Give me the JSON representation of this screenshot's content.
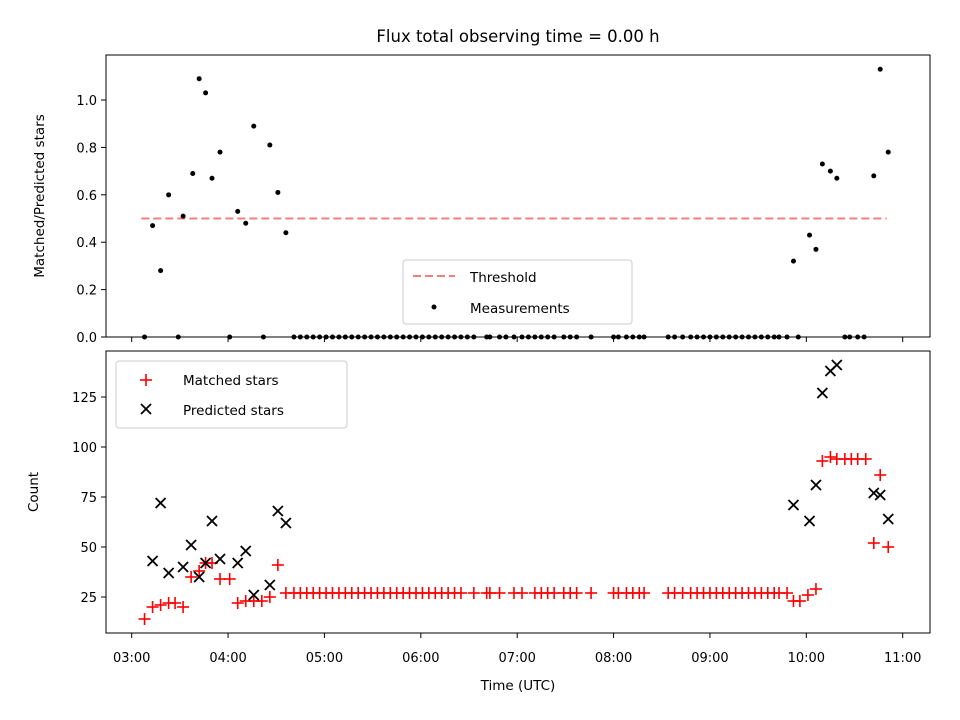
{
  "chart_data": [
    {
      "type": "scatter",
      "title": "Flux total observing time = 0.00 h",
      "xlabel": "",
      "ylabel": "Matched/Predicted stars",
      "xlim": [
        "02:44",
        "11:17"
      ],
      "ylim": [
        0,
        1.19
      ],
      "xticks": [
        "03:00",
        "04:00",
        "05:00",
        "06:00",
        "07:00",
        "08:00",
        "09:00",
        "10:00",
        "11:00"
      ],
      "yticks": [
        "0.0",
        "0.2",
        "0.4",
        "0.6",
        "0.8",
        "1.0"
      ],
      "grid": false,
      "legend_position": "lower-center",
      "threshold": {
        "name": "Threshold",
        "value": 0.5,
        "x_range": [
          "03:06",
          "10:50"
        ],
        "color": "#f08080",
        "style": "dashed"
      },
      "series": [
        {
          "name": "Measurements",
          "marker": "dot",
          "color": "#000000",
          "points": [
            [
              "03:08",
              0.0
            ],
            [
              "03:13",
              0.47
            ],
            [
              "03:18",
              0.28
            ],
            [
              "03:23",
              0.6
            ],
            [
              "03:29",
              0.0
            ],
            [
              "03:32",
              0.51
            ],
            [
              "03:38",
              0.69
            ],
            [
              "03:42",
              1.09
            ],
            [
              "03:46",
              1.03
            ],
            [
              "03:50",
              0.67
            ],
            [
              "03:55",
              0.78
            ],
            [
              "04:01",
              0.0
            ],
            [
              "04:06",
              0.53
            ],
            [
              "04:11",
              0.48
            ],
            [
              "04:16",
              0.89
            ],
            [
              "04:22",
              0.0
            ],
            [
              "04:26",
              0.81
            ],
            [
              "04:31",
              0.61
            ],
            [
              "04:36",
              0.44
            ],
            [
              "04:41",
              0.0
            ],
            [
              "04:45",
              0.0
            ],
            [
              "04:49",
              0.0
            ],
            [
              "04:53",
              0.0
            ],
            [
              "04:57",
              0.0
            ],
            [
              "05:01",
              0.0
            ],
            [
              "05:05",
              0.0
            ],
            [
              "05:09",
              0.0
            ],
            [
              "05:13",
              0.0
            ],
            [
              "05:17",
              0.0
            ],
            [
              "05:21",
              0.0
            ],
            [
              "05:25",
              0.0
            ],
            [
              "05:29",
              0.0
            ],
            [
              "05:33",
              0.0
            ],
            [
              "05:37",
              0.0
            ],
            [
              "05:41",
              0.0
            ],
            [
              "05:45",
              0.0
            ],
            [
              "05:49",
              0.0
            ],
            [
              "05:53",
              0.0
            ],
            [
              "05:57",
              0.0
            ],
            [
              "06:01",
              0.0
            ],
            [
              "06:05",
              0.0
            ],
            [
              "06:09",
              0.0
            ],
            [
              "06:13",
              0.0
            ],
            [
              "06:17",
              0.0
            ],
            [
              "06:21",
              0.0
            ],
            [
              "06:25",
              0.0
            ],
            [
              "06:29",
              0.0
            ],
            [
              "06:33",
              0.0
            ],
            [
              "06:41",
              0.0
            ],
            [
              "06:43",
              0.0
            ],
            [
              "06:49",
              0.0
            ],
            [
              "06:53",
              0.0
            ],
            [
              "06:58",
              0.0
            ],
            [
              "07:03",
              0.0
            ],
            [
              "07:07",
              0.0
            ],
            [
              "07:11",
              0.0
            ],
            [
              "07:15",
              0.0
            ],
            [
              "07:19",
              0.0
            ],
            [
              "07:23",
              0.0
            ],
            [
              "07:29",
              0.0
            ],
            [
              "07:33",
              0.0
            ],
            [
              "07:37",
              0.0
            ],
            [
              "07:46",
              0.0
            ],
            [
              "08:00",
              0.0
            ],
            [
              "08:03",
              0.0
            ],
            [
              "08:08",
              0.0
            ],
            [
              "08:12",
              0.0
            ],
            [
              "08:16",
              0.0
            ],
            [
              "08:19",
              0.0
            ],
            [
              "08:34",
              0.0
            ],
            [
              "08:38",
              0.0
            ],
            [
              "08:43",
              0.0
            ],
            [
              "08:48",
              0.0
            ],
            [
              "08:52",
              0.0
            ],
            [
              "08:56",
              0.0
            ],
            [
              "09:00",
              0.0
            ],
            [
              "09:04",
              0.0
            ],
            [
              "09:08",
              0.0
            ],
            [
              "09:12",
              0.0
            ],
            [
              "09:16",
              0.0
            ],
            [
              "09:20",
              0.0
            ],
            [
              "09:24",
              0.0
            ],
            [
              "09:28",
              0.0
            ],
            [
              "09:32",
              0.0
            ],
            [
              "09:36",
              0.0
            ],
            [
              "09:40",
              0.0
            ],
            [
              "09:43",
              0.0
            ],
            [
              "09:48",
              0.0
            ],
            [
              "09:55",
              0.0
            ],
            [
              "09:52",
              0.32
            ],
            [
              "10:02",
              0.43
            ],
            [
              "10:06",
              0.37
            ],
            [
              "10:10",
              0.73
            ],
            [
              "10:15",
              0.7
            ],
            [
              "10:19",
              0.67
            ],
            [
              "10:24",
              0.0
            ],
            [
              "10:27",
              0.0
            ],
            [
              "10:32",
              0.0
            ],
            [
              "10:36",
              0.0
            ],
            [
              "10:42",
              0.68
            ],
            [
              "10:46",
              1.13
            ],
            [
              "10:51",
              0.78
            ]
          ]
        }
      ]
    },
    {
      "type": "scatter",
      "title": "",
      "xlabel": "Time (UTC)",
      "ylabel": "Count",
      "xlim": [
        "02:44",
        "11:17"
      ],
      "ylim": [
        7,
        148
      ],
      "xticks": [
        "03:00",
        "04:00",
        "05:00",
        "06:00",
        "07:00",
        "08:00",
        "09:00",
        "10:00",
        "11:00"
      ],
      "yticks": [
        "25",
        "50",
        "75",
        "100",
        "125"
      ],
      "grid": false,
      "legend_position": "upper-left",
      "series": [
        {
          "name": "Matched stars",
          "marker": "plus",
          "color": "#ff0000",
          "points": [
            [
              "03:08",
              14
            ],
            [
              "03:13",
              20
            ],
            [
              "03:18",
              21
            ],
            [
              "03:23",
              22
            ],
            [
              "03:27",
              22
            ],
            [
              "03:32",
              20
            ],
            [
              "03:37",
              35
            ],
            [
              "03:42",
              38
            ],
            [
              "03:46",
              42
            ],
            [
              "03:50",
              42
            ],
            [
              "03:55",
              34
            ],
            [
              "04:01",
              34
            ],
            [
              "04:06",
              22
            ],
            [
              "04:11",
              23
            ],
            [
              "04:16",
              23
            ],
            [
              "04:21",
              23
            ],
            [
              "04:26",
              25
            ],
            [
              "04:31",
              41
            ],
            [
              "04:36",
              27
            ],
            [
              "04:41",
              27
            ],
            [
              "04:45",
              27
            ],
            [
              "04:49",
              27
            ],
            [
              "04:53",
              27
            ],
            [
              "04:57",
              27
            ],
            [
              "05:01",
              27
            ],
            [
              "05:05",
              27
            ],
            [
              "05:09",
              27
            ],
            [
              "05:13",
              27
            ],
            [
              "05:17",
              27
            ],
            [
              "05:21",
              27
            ],
            [
              "05:25",
              27
            ],
            [
              "05:29",
              27
            ],
            [
              "05:33",
              27
            ],
            [
              "05:37",
              27
            ],
            [
              "05:41",
              27
            ],
            [
              "05:45",
              27
            ],
            [
              "05:49",
              27
            ],
            [
              "05:53",
              27
            ],
            [
              "05:57",
              27
            ],
            [
              "06:01",
              27
            ],
            [
              "06:05",
              27
            ],
            [
              "06:09",
              27
            ],
            [
              "06:13",
              27
            ],
            [
              "06:17",
              27
            ],
            [
              "06:21",
              27
            ],
            [
              "06:25",
              27
            ],
            [
              "06:33",
              27
            ],
            [
              "06:41",
              27
            ],
            [
              "06:43",
              27
            ],
            [
              "06:49",
              27
            ],
            [
              "06:58",
              27
            ],
            [
              "07:03",
              27
            ],
            [
              "07:11",
              27
            ],
            [
              "07:15",
              27
            ],
            [
              "07:19",
              27
            ],
            [
              "07:23",
              27
            ],
            [
              "07:29",
              27
            ],
            [
              "07:33",
              27
            ],
            [
              "07:37",
              27
            ],
            [
              "07:46",
              27
            ],
            [
              "08:00",
              27
            ],
            [
              "08:03",
              27
            ],
            [
              "08:08",
              27
            ],
            [
              "08:12",
              27
            ],
            [
              "08:16",
              27
            ],
            [
              "08:19",
              27
            ],
            [
              "08:34",
              27
            ],
            [
              "08:38",
              27
            ],
            [
              "08:43",
              27
            ],
            [
              "08:48",
              27
            ],
            [
              "08:52",
              27
            ],
            [
              "08:56",
              27
            ],
            [
              "09:00",
              27
            ],
            [
              "09:04",
              27
            ],
            [
              "09:08",
              27
            ],
            [
              "09:12",
              27
            ],
            [
              "09:16",
              27
            ],
            [
              "09:20",
              27
            ],
            [
              "09:24",
              27
            ],
            [
              "09:28",
              27
            ],
            [
              "09:32",
              27
            ],
            [
              "09:36",
              27
            ],
            [
              "09:40",
              27
            ],
            [
              "09:43",
              27
            ],
            [
              "09:48",
              27
            ],
            [
              "09:52",
              23
            ],
            [
              "09:56",
              23
            ],
            [
              "10:01",
              26
            ],
            [
              "10:06",
              29
            ],
            [
              "10:10",
              93
            ],
            [
              "10:15",
              95
            ],
            [
              "10:19",
              94
            ],
            [
              "10:24",
              94
            ],
            [
              "10:28",
              94
            ],
            [
              "10:32",
              94
            ],
            [
              "10:37",
              94
            ],
            [
              "10:42",
              52
            ],
            [
              "10:46",
              86
            ],
            [
              "10:51",
              50
            ]
          ]
        },
        {
          "name": "Predicted stars",
          "marker": "x",
          "color": "#000000",
          "points": [
            [
              "03:13",
              43
            ],
            [
              "03:18",
              72
            ],
            [
              "03:23",
              37
            ],
            [
              "03:32",
              40
            ],
            [
              "03:37",
              51
            ],
            [
              "03:42",
              35
            ],
            [
              "03:46",
              42
            ],
            [
              "03:50",
              63
            ],
            [
              "03:55",
              44
            ],
            [
              "04:06",
              42
            ],
            [
              "04:11",
              48
            ],
            [
              "04:16",
              26
            ],
            [
              "04:26",
              31
            ],
            [
              "04:31",
              68
            ],
            [
              "04:36",
              62
            ],
            [
              "09:52",
              71
            ],
            [
              "10:02",
              63
            ],
            [
              "10:06",
              81
            ],
            [
              "10:10",
              127
            ],
            [
              "10:15",
              138
            ],
            [
              "10:19",
              141
            ],
            [
              "10:42",
              77
            ],
            [
              "10:46",
              76
            ],
            [
              "10:51",
              64
            ]
          ]
        }
      ]
    }
  ]
}
